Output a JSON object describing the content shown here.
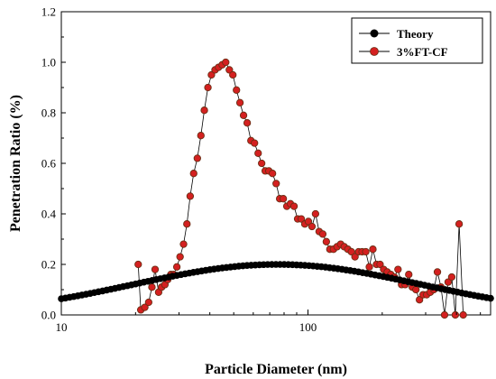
{
  "chart_data": {
    "type": "scatter",
    "xlabel": "Particle Diameter (nm)",
    "ylabel": "Penetration Ratio (%)",
    "xscale": "log",
    "xlim": [
      10,
      550
    ],
    "ylim": [
      0,
      1.2
    ],
    "x_ticks": [
      10,
      100
    ],
    "x_tick_labels": [
      "10",
      "100"
    ],
    "y_ticks": [
      0.0,
      0.2,
      0.4,
      0.6,
      0.8,
      1.0,
      1.2
    ],
    "y_tick_labels": [
      "0.0",
      "0.2",
      "0.4",
      "0.6",
      "0.8",
      "1.0",
      "1.2"
    ],
    "grid": false,
    "legend_position": "top-right",
    "theory": {
      "name": "Theory",
      "color": "#000000",
      "x_start": 10,
      "x_end": 550,
      "point_count": 105,
      "peak_x": 75,
      "peak_y": 0.2,
      "log_sigma": 0.58
    },
    "series": [
      {
        "name": "3%FT-CF",
        "color": "#d42020",
        "edge_color": "#6a2e14",
        "points": [
          [
            20.5,
            0.2
          ],
          [
            21.0,
            0.02
          ],
          [
            21.8,
            0.03
          ],
          [
            22.6,
            0.05
          ],
          [
            23.3,
            0.11
          ],
          [
            24.0,
            0.18
          ],
          [
            24.8,
            0.09
          ],
          [
            25.5,
            0.11
          ],
          [
            26.3,
            0.12
          ],
          [
            27.0,
            0.14
          ],
          [
            27.8,
            0.16
          ],
          [
            28.5,
            0.16
          ],
          [
            29.4,
            0.19
          ],
          [
            30.3,
            0.23
          ],
          [
            31.3,
            0.28
          ],
          [
            32.3,
            0.36
          ],
          [
            33.3,
            0.47
          ],
          [
            34.4,
            0.56
          ],
          [
            35.6,
            0.62
          ],
          [
            36.8,
            0.71
          ],
          [
            38.0,
            0.81
          ],
          [
            39.3,
            0.9
          ],
          [
            40.6,
            0.95
          ],
          [
            42.0,
            0.97
          ],
          [
            43.4,
            0.98
          ],
          [
            44.9,
            0.99
          ],
          [
            46.4,
            1.0
          ],
          [
            48.0,
            0.97
          ],
          [
            49.6,
            0.95
          ],
          [
            51.3,
            0.89
          ],
          [
            53.0,
            0.84
          ],
          [
            54.8,
            0.79
          ],
          [
            56.7,
            0.76
          ],
          [
            58.7,
            0.69
          ],
          [
            60.7,
            0.68
          ],
          [
            62.8,
            0.64
          ],
          [
            64.9,
            0.6
          ],
          [
            67.1,
            0.57
          ],
          [
            69.4,
            0.57
          ],
          [
            71.8,
            0.56
          ],
          [
            74.3,
            0.52
          ],
          [
            76.8,
            0.46
          ],
          [
            79.4,
            0.46
          ],
          [
            82.1,
            0.43
          ],
          [
            84.9,
            0.44
          ],
          [
            87.8,
            0.43
          ],
          [
            90.8,
            0.38
          ],
          [
            93.9,
            0.38
          ],
          [
            97.1,
            0.36
          ],
          [
            100.4,
            0.37
          ],
          [
            103.8,
            0.35
          ],
          [
            107.3,
            0.4
          ],
          [
            111.0,
            0.33
          ],
          [
            114.8,
            0.32
          ],
          [
            118.7,
            0.29
          ],
          [
            122.7,
            0.26
          ],
          [
            126.9,
            0.26
          ],
          [
            131.2,
            0.27
          ],
          [
            135.7,
            0.28
          ],
          [
            140.3,
            0.27
          ],
          [
            145.1,
            0.26
          ],
          [
            150.0,
            0.25
          ],
          [
            155.1,
            0.23
          ],
          [
            160.4,
            0.25
          ],
          [
            165.8,
            0.25
          ],
          [
            171.5,
            0.25
          ],
          [
            177.3,
            0.19
          ],
          [
            183.3,
            0.26
          ],
          [
            189.6,
            0.2
          ],
          [
            196.0,
            0.2
          ],
          [
            202.7,
            0.18
          ],
          [
            209.6,
            0.17
          ],
          [
            216.7,
            0.16
          ],
          [
            224.1,
            0.15
          ],
          [
            231.7,
            0.18
          ],
          [
            239.6,
            0.12
          ],
          [
            247.7,
            0.12
          ],
          [
            256.2,
            0.16
          ],
          [
            264.9,
            0.11
          ],
          [
            273.9,
            0.1
          ],
          [
            283.2,
            0.06
          ],
          [
            292.8,
            0.08
          ],
          [
            302.8,
            0.08
          ],
          [
            313.1,
            0.09
          ],
          [
            323.8,
            0.1
          ],
          [
            334.8,
            0.17
          ],
          [
            346.2,
            0.11
          ],
          [
            357.9,
            0.0
          ],
          [
            370.1,
            0.13
          ],
          [
            382.7,
            0.15
          ],
          [
            395.7,
            0.0
          ],
          [
            410.0,
            0.36
          ],
          [
            426.0,
            0.0
          ]
        ]
      }
    ]
  }
}
